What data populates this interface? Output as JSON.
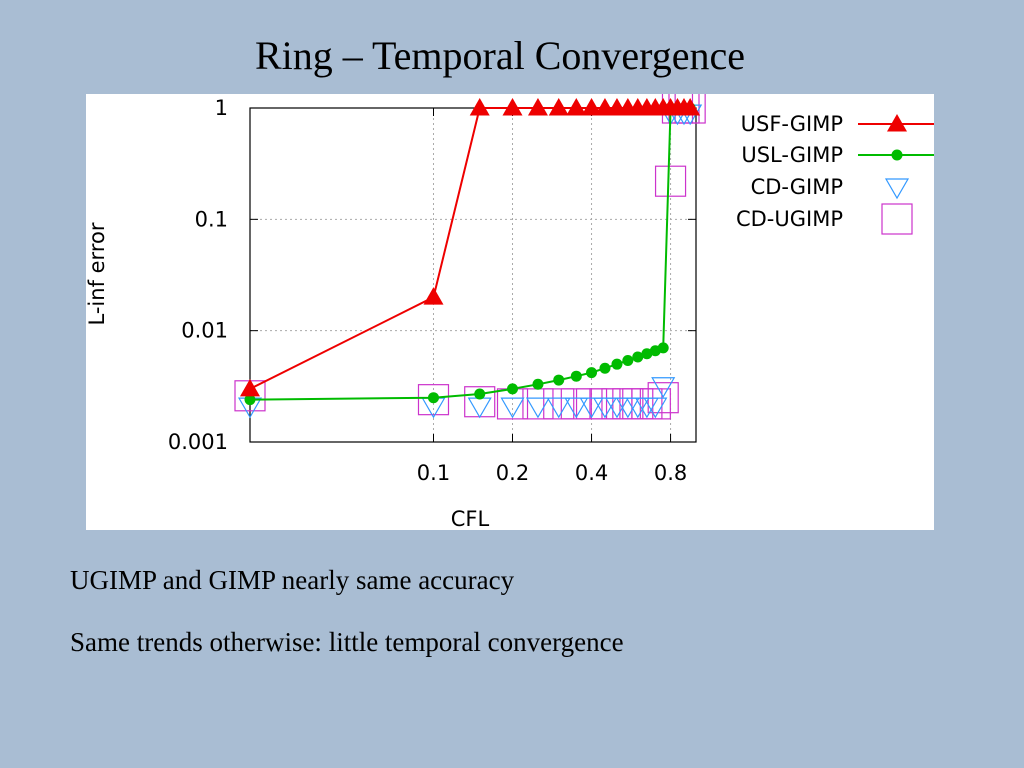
{
  "slide": {
    "title": "Ring – Temporal Convergence",
    "bullets": [
      "UGIMP and GIMP nearly same accuracy",
      "Same trends otherwise: little temporal convergence"
    ]
  },
  "colors": {
    "background": "#a9bdd3",
    "usf": "#ee0000",
    "usl": "#00bb00",
    "cd": "#3399ff",
    "cdu": "#cc33cc"
  },
  "chart_data": {
    "type": "line",
    "title": "",
    "xlabel": "CFL",
    "ylabel": "L-inf error",
    "xscale": "log",
    "yscale": "log",
    "xlim": [
      0.02,
      1.0
    ],
    "ylim": [
      0.001,
      1
    ],
    "grid": true,
    "legend_position": "right",
    "x_ticks": [
      {
        "value": 0.1,
        "label": "0.1"
      },
      {
        "value": 0.2,
        "label": "0.2"
      },
      {
        "value": 0.4,
        "label": "0.4"
      },
      {
        "value": 0.8,
        "label": "0.8"
      }
    ],
    "y_ticks": [
      {
        "value": 1,
        "label": "1"
      },
      {
        "value": 0.1,
        "label": "0.1"
      },
      {
        "value": 0.01,
        "label": "0.01"
      },
      {
        "value": 0.001,
        "label": "0.001"
      }
    ],
    "series": [
      {
        "name": "USF-GIMP",
        "marker": "triangle",
        "color": "#ee0000",
        "line": true,
        "x": [
          0.02,
          0.1,
          0.15,
          0.2,
          0.25,
          0.3,
          0.35,
          0.4,
          0.45,
          0.5,
          0.55,
          0.6,
          0.65,
          0.7,
          0.75,
          0.8,
          0.85,
          0.9,
          0.95
        ],
        "y": [
          0.003,
          0.02,
          1,
          1,
          1,
          1,
          1,
          1,
          1,
          1,
          1,
          1,
          1,
          1,
          1,
          1,
          1,
          1,
          1
        ]
      },
      {
        "name": "USL-GIMP",
        "marker": "circle",
        "color": "#00bb00",
        "line": true,
        "x": [
          0.02,
          0.1,
          0.15,
          0.2,
          0.25,
          0.3,
          0.35,
          0.4,
          0.45,
          0.5,
          0.55,
          0.6,
          0.65,
          0.7,
          0.75,
          0.8,
          0.85,
          0.9,
          0.95
        ],
        "y": [
          0.0024,
          0.0025,
          0.0027,
          0.003,
          0.0033,
          0.0036,
          0.0039,
          0.0042,
          0.0046,
          0.005,
          0.0054,
          0.0058,
          0.0062,
          0.0066,
          0.007,
          1,
          1,
          1,
          1
        ]
      },
      {
        "name": "CD-GIMP",
        "marker": "triangle-down",
        "color": "#3399ff",
        "line": false,
        "x": [
          0.02,
          0.1,
          0.15,
          0.2,
          0.25,
          0.3,
          0.35,
          0.4,
          0.45,
          0.5,
          0.55,
          0.6,
          0.65,
          0.7,
          0.75,
          0.8,
          0.85,
          0.9,
          0.95
        ],
        "y": [
          0.0021,
          0.0021,
          0.0021,
          0.0021,
          0.0021,
          0.0021,
          0.0021,
          0.0021,
          0.0021,
          0.0021,
          0.0021,
          0.0021,
          0.0021,
          0.0021,
          0.0032,
          0.9,
          0.9,
          0.9,
          0.9
        ]
      },
      {
        "name": "CD-UGIMP",
        "marker": "square",
        "color": "#cc33cc",
        "line": false,
        "x": [
          0.02,
          0.1,
          0.15,
          0.2,
          0.25,
          0.3,
          0.35,
          0.4,
          0.45,
          0.5,
          0.55,
          0.6,
          0.65,
          0.7,
          0.75,
          0.8,
          0.85,
          0.9,
          0.95
        ],
        "y": [
          0.0026,
          0.0024,
          0.0023,
          0.0022,
          0.0022,
          0.0022,
          0.0022,
          0.0022,
          0.0022,
          0.0022,
          0.0022,
          0.0022,
          0.0022,
          0.0022,
          0.0025,
          0.22,
          1,
          1,
          1
        ]
      }
    ]
  }
}
